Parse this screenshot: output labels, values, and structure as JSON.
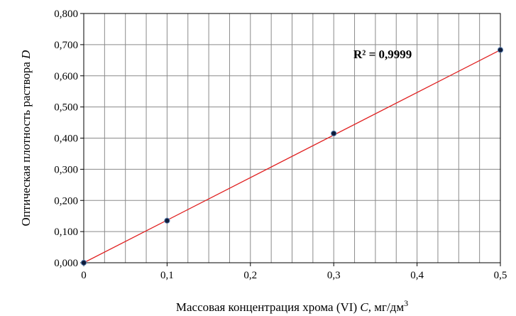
{
  "chart_data": {
    "type": "scatter",
    "xlabel": {
      "prefix": "Массовая концентрация хрома (VI) ",
      "var": "C,",
      "unit": " мг/дм",
      "sup": "3"
    },
    "ylabel": {
      "prefix": "Оптическая плотность раствора  ",
      "var": "D"
    },
    "xlim": [
      0,
      0.5
    ],
    "ylim": [
      0,
      0.8
    ],
    "x_ticks": [
      0,
      0.1,
      0.2,
      0.3,
      0.4,
      0.5
    ],
    "x_tick_labels": [
      "0",
      "0,1",
      "0,2",
      "0,3",
      "0,4",
      "0,5"
    ],
    "y_ticks": [
      0,
      0.1,
      0.2,
      0.3,
      0.4,
      0.5,
      0.6,
      0.7,
      0.8
    ],
    "y_tick_labels": [
      "0,000",
      "0,100",
      "0,200",
      "0,300",
      "0,400",
      "0,500",
      "0,600",
      "0,700",
      "0,800"
    ],
    "minor_x_step": 0.025,
    "grid": true,
    "series": [
      {
        "x": [
          0,
          0.1,
          0.3,
          0.5
        ],
        "y": [
          0.0,
          0.135,
          0.415,
          0.683
        ],
        "marker_color": "#0d1b3a",
        "marker_edge": "#5a7fb0"
      }
    ],
    "trendline": {
      "type": "linear",
      "x": [
        0,
        0.5
      ],
      "y": [
        0.0,
        0.683
      ],
      "color": "#e02020"
    },
    "annotation": "R² = 0,9999"
  }
}
